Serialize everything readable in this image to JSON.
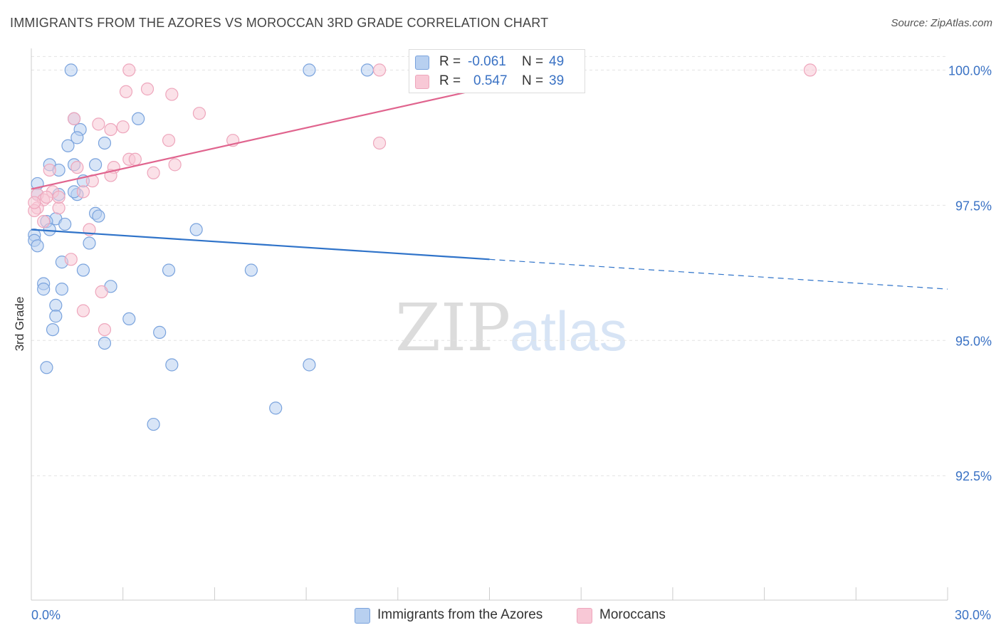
{
  "title": "IMMIGRANTS FROM THE AZORES VS MOROCCAN 3RD GRADE CORRELATION CHART",
  "source": "Source: ZipAtlas.com",
  "watermark": {
    "zip": "ZIP",
    "atlas": "atlas"
  },
  "colors": {
    "blue_fill": "#b8d0f0",
    "blue_stroke": "#7aa3dd",
    "blue_line": "#2f73c9",
    "pink_fill": "#f8c8d6",
    "pink_stroke": "#eea6bc",
    "pink_line": "#e0648e",
    "tick_label": "#3a72c4",
    "grid": "#e2e2e2"
  },
  "legend": {
    "rows": [
      {
        "r_label": "R =",
        "r_value": "-0.061",
        "n_label": "N =",
        "n_value": "49"
      },
      {
        "r_label": "R =",
        "r_value": "0.547",
        "n_label": "N =",
        "n_value": "39"
      }
    ]
  },
  "chart_data": {
    "type": "scatter",
    "ylabel": "3rd Grade",
    "xlim": [
      0,
      30
    ],
    "ylim": [
      90.2,
      100.4
    ],
    "x_tick_labels": [
      {
        "value": 0,
        "label": "0.0%"
      },
      {
        "value": 30,
        "label": "30.0%"
      }
    ],
    "x_minor_ticks": [
      0,
      3,
      6,
      9,
      12,
      15,
      18,
      21,
      24,
      27,
      30
    ],
    "y_ticks": [
      {
        "value": 100.0,
        "label": "100.0%"
      },
      {
        "value": 97.5,
        "label": "97.5%"
      },
      {
        "value": 95.0,
        "label": "95.0%"
      },
      {
        "value": 92.5,
        "label": "92.5%"
      }
    ],
    "grid": true,
    "series": [
      {
        "name": "Immigrants from the Azores",
        "color": "blue",
        "trend": {
          "x0": 0,
          "y0": 97.05,
          "x_solid_end": 15,
          "x1": 30,
          "y1": 95.95
        },
        "points": [
          [
            1.3,
            100.0
          ],
          [
            9.1,
            100.0
          ],
          [
            11.0,
            100.0
          ],
          [
            1.4,
            99.1
          ],
          [
            3.5,
            99.1
          ],
          [
            1.6,
            98.9
          ],
          [
            1.5,
            98.75
          ],
          [
            1.2,
            98.6
          ],
          [
            2.4,
            98.65
          ],
          [
            0.6,
            98.25
          ],
          [
            1.4,
            98.25
          ],
          [
            2.1,
            98.25
          ],
          [
            0.9,
            98.15
          ],
          [
            1.7,
            97.95
          ],
          [
            0.2,
            97.9
          ],
          [
            0.2,
            97.7
          ],
          [
            0.9,
            97.7
          ],
          [
            1.5,
            97.7
          ],
          [
            1.4,
            97.75
          ],
          [
            2.1,
            97.35
          ],
          [
            2.2,
            97.3
          ],
          [
            0.8,
            97.25
          ],
          [
            1.1,
            97.15
          ],
          [
            0.5,
            97.2
          ],
          [
            0.6,
            97.05
          ],
          [
            5.4,
            97.05
          ],
          [
            0.1,
            96.95
          ],
          [
            0.1,
            96.85
          ],
          [
            0.2,
            96.75
          ],
          [
            1.9,
            96.8
          ],
          [
            1.0,
            96.45
          ],
          [
            1.7,
            96.3
          ],
          [
            4.5,
            96.3
          ],
          [
            7.2,
            96.3
          ],
          [
            0.4,
            96.05
          ],
          [
            2.6,
            96.0
          ],
          [
            0.4,
            95.95
          ],
          [
            1.0,
            95.95
          ],
          [
            0.8,
            95.65
          ],
          [
            0.8,
            95.45
          ],
          [
            3.2,
            95.4
          ],
          [
            0.7,
            95.2
          ],
          [
            4.2,
            95.15
          ],
          [
            2.4,
            94.95
          ],
          [
            0.5,
            94.5
          ],
          [
            4.6,
            94.55
          ],
          [
            9.1,
            94.55
          ],
          [
            8.0,
            93.75
          ],
          [
            4.0,
            93.45
          ]
        ]
      },
      {
        "name": "Moroccans",
        "color": "pink",
        "trend": {
          "x0": 0,
          "y0": 97.8,
          "x_solid_end": 17.5,
          "x1": 17.5,
          "y1": 100.0
        },
        "points": [
          [
            3.2,
            100.0
          ],
          [
            11.4,
            100.0
          ],
          [
            25.5,
            100.0
          ],
          [
            3.1,
            99.6
          ],
          [
            3.8,
            99.65
          ],
          [
            4.6,
            99.55
          ],
          [
            5.5,
            99.2
          ],
          [
            2.2,
            99.0
          ],
          [
            1.4,
            99.1
          ],
          [
            2.6,
            98.9
          ],
          [
            3.0,
            98.95
          ],
          [
            4.5,
            98.7
          ],
          [
            6.6,
            98.7
          ],
          [
            11.4,
            98.65
          ],
          [
            3.2,
            98.35
          ],
          [
            3.4,
            98.35
          ],
          [
            2.7,
            98.2
          ],
          [
            4.7,
            98.25
          ],
          [
            4.0,
            98.1
          ],
          [
            2.6,
            98.05
          ],
          [
            1.5,
            98.2
          ],
          [
            0.6,
            98.15
          ],
          [
            2.0,
            97.95
          ],
          [
            0.7,
            97.75
          ],
          [
            1.7,
            97.75
          ],
          [
            0.2,
            97.7
          ],
          [
            0.4,
            97.6
          ],
          [
            0.5,
            97.65
          ],
          [
            0.2,
            97.45
          ],
          [
            0.1,
            97.4
          ],
          [
            0.1,
            97.55
          ],
          [
            0.9,
            97.45
          ],
          [
            0.9,
            97.65
          ],
          [
            0.4,
            97.2
          ],
          [
            1.9,
            97.05
          ],
          [
            1.3,
            96.5
          ],
          [
            2.3,
            95.9
          ],
          [
            1.7,
            95.55
          ],
          [
            2.4,
            95.2
          ]
        ]
      }
    ]
  }
}
